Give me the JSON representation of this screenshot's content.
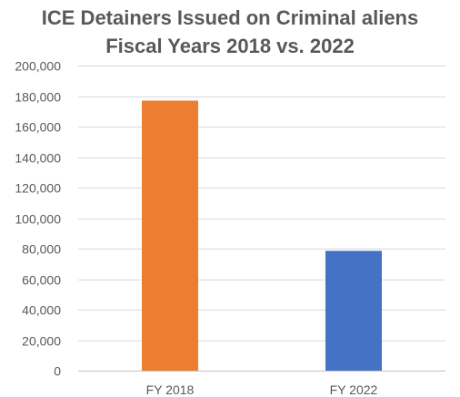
{
  "chart_data": {
    "type": "bar",
    "title_lines": [
      "ICE Detainers Issued on Criminal aliens",
      "Fiscal Years 2018 vs. 2022"
    ],
    "categories": [
      "FY 2018",
      "FY 2022"
    ],
    "values": [
      177000,
      78500
    ],
    "bar_colors": [
      "#ED7D31",
      "#4472C4"
    ],
    "ylim": [
      0,
      200000
    ],
    "y_ticks": [
      0,
      20000,
      40000,
      60000,
      80000,
      100000,
      120000,
      140000,
      160000,
      180000,
      200000
    ],
    "y_tick_labels": [
      "0",
      "20,000",
      "40,000",
      "60,000",
      "80,000",
      "100,000",
      "120,000",
      "140,000",
      "160,000",
      "180,000",
      "200,000"
    ],
    "grid": true,
    "legend": "none",
    "gridline_color": "#D9D9D9",
    "text_color": "#595959"
  }
}
